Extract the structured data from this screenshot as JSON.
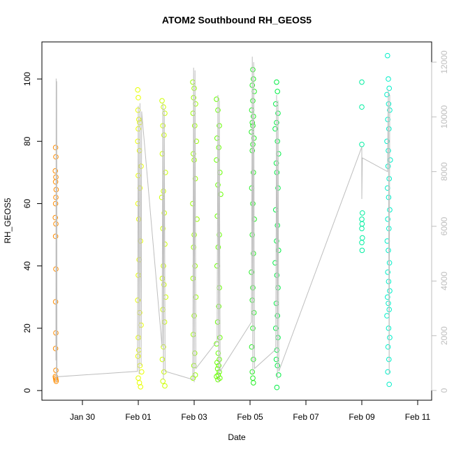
{
  "chart_data": {
    "type": "scatter",
    "title": "ATOM2 Southbound RH_GEOS5",
    "x_label": "Date",
    "y_label": "RH_GEOS5",
    "xlim": [
      28.55,
      42.5
    ],
    "xticks": [
      {
        "value": 30,
        "label": "Jan 30"
      },
      {
        "value": 32,
        "label": "Feb 01"
      },
      {
        "value": 34,
        "label": "Feb 03"
      },
      {
        "value": 36,
        "label": "Feb 05"
      },
      {
        "value": 38,
        "label": "Feb 07"
      },
      {
        "value": 40,
        "label": "Feb 09"
      },
      {
        "value": 42,
        "label": "Feb 11"
      }
    ],
    "ylim": [
      -3.1,
      111.9
    ],
    "yticks": [
      0,
      20,
      40,
      60,
      80,
      100
    ],
    "y2lim": [
      -357,
      12740
    ],
    "y2ticks": [
      0,
      2000,
      4000,
      6000,
      8000,
      10000,
      12000
    ],
    "y2_color": "#bebebe",
    "series": [
      {
        "color": "#ff8c00",
        "x": [
          29.04,
          29.05,
          29.03,
          29.05,
          29.04,
          29.06,
          29.05,
          29.04,
          29.03,
          29.05,
          29.04,
          29.05,
          29.04,
          29.05,
          29.04,
          29.05,
          29.03,
          29.04,
          29.05,
          29.06
        ],
        "values": [
          78,
          75,
          70.5,
          68.5,
          67,
          64.5,
          62,
          60,
          55.5,
          53.5,
          49.5,
          39,
          28.5,
          18.5,
          13.5,
          6.5,
          4.5,
          4,
          3.5,
          3
        ]
      },
      {
        "color": "#e8ff00",
        "x": [
          31.98,
          32.0,
          31.99,
          32.02,
          32.05,
          32.0,
          31.98,
          32.04,
          32.1,
          32.0,
          32.06,
          31.99,
          32.02,
          32.08,
          32.03,
          32.0,
          31.98,
          32.05,
          32.1,
          32.0,
          32.02,
          31.99,
          32.06,
          32.12,
          32.0,
          32.04,
          32.08
        ],
        "values": [
          96.5,
          94,
          90,
          87,
          86,
          84,
          80,
          77,
          72,
          69,
          65,
          60,
          55,
          48,
          42,
          37,
          29,
          25,
          21,
          17,
          13,
          11,
          8,
          6,
          4,
          2.5,
          1.2
        ]
      },
      {
        "color": "#ccff00",
        "x": [
          32.85,
          32.9,
          32.95,
          32.88,
          32.92,
          32.86,
          32.97,
          32.9,
          32.84,
          32.93,
          32.88,
          32.95,
          32.9,
          32.86,
          32.92,
          32.98,
          32.88,
          32.94,
          32.9,
          32.86,
          32.92,
          32.88,
          32.95
        ],
        "values": [
          93,
          91,
          89,
          85,
          82,
          76,
          70,
          64,
          62,
          57,
          52,
          47,
          40,
          36,
          34,
          30,
          26,
          22,
          14,
          10,
          6,
          3,
          1.5
        ]
      },
      {
        "color": "#99ff00",
        "x": [
          33.95,
          34.0,
          33.98,
          34.05,
          33.96,
          34.02,
          34.08,
          33.97,
          34.0,
          34.04,
          33.95,
          34.1,
          34.0,
          33.98,
          34.03,
          33.96,
          34.06,
          34.0,
          33.97,
          34.02,
          33.99,
          34.04,
          33.96
        ],
        "values": [
          99,
          97,
          94,
          92,
          89,
          85,
          80,
          76,
          74,
          68,
          60,
          55,
          50,
          46,
          40,
          36,
          30,
          24,
          18,
          12,
          8,
          5,
          4
        ]
      },
      {
        "color": "#66ff00",
        "x": [
          34.8,
          34.85,
          34.9,
          34.82,
          34.88,
          34.8,
          34.92,
          34.85,
          34.95,
          34.83,
          34.9,
          34.86,
          34.82,
          34.9,
          34.88,
          34.84,
          34.92,
          34.8,
          34.86,
          34.9,
          34.82,
          34.88,
          34.84,
          34.9,
          34.86,
          34.8,
          34.92,
          34.85
        ],
        "values": [
          93.5,
          90,
          85,
          81,
          78,
          74,
          70,
          66,
          63,
          56,
          50,
          46,
          40,
          33,
          27,
          22,
          17,
          15,
          12,
          10,
          9,
          8,
          7,
          6,
          5,
          4.5,
          4,
          3.5
        ]
      },
      {
        "color": "#22ee22",
        "x": [
          36.1,
          36.12,
          36.08,
          36.15,
          36.1,
          36.06,
          36.12,
          36.08,
          36.1,
          36.05,
          36.14,
          36.1,
          36.08,
          36.12,
          36.06,
          36.1,
          36.15,
          36.08,
          36.12,
          36.05,
          36.1,
          36.08,
          36.14,
          36.1,
          36.06,
          36.12,
          36.08,
          36.1,
          36.12
        ],
        "values": [
          103,
          100,
          98,
          96,
          93,
          90,
          88,
          86,
          85,
          83,
          81,
          79,
          77,
          70,
          65,
          60,
          55,
          50,
          44,
          38,
          33,
          29,
          25,
          20,
          14,
          10,
          6,
          4,
          2.5
        ]
      },
      {
        "color": "#00ee44",
        "x": [
          36.95,
          36.98,
          36.92,
          37.0,
          36.95,
          36.9,
          36.98,
          37.02,
          36.94,
          36.96,
          37.0,
          36.92,
          36.98,
          36.95,
          37.02,
          36.9,
          36.96,
          37.0,
          36.94,
          36.98,
          36.92,
          37.0,
          36.96,
          36.94,
          36.98,
          37.02,
          36.96
        ],
        "values": [
          99,
          96,
          92,
          89,
          86,
          84,
          80,
          76,
          73,
          70,
          65,
          58,
          53,
          48,
          45,
          41,
          37,
          33,
          28,
          24,
          20,
          17,
          13,
          10,
          8,
          5,
          1
        ]
      },
      {
        "color": "#00eea0",
        "x": [
          40.0,
          40.0,
          40.0,
          40.02,
          40.0,
          40.01,
          40.0,
          40.02,
          40.0,
          40.01
        ],
        "values": [
          99,
          91,
          79,
          57,
          55,
          53.5,
          52,
          49,
          47.5,
          45
        ]
      },
      {
        "color": "#00eec8",
        "x": [
          40.92,
          40.95,
          40.98,
          40.9,
          40.96,
          41.0,
          40.93,
          40.97,
          40.9,
          40.95,
          41.02,
          40.94,
          40.98,
          40.92,
          40.96,
          41.0,
          40.93,
          40.97,
          40.91,
          40.95,
          40.99,
          40.93,
          40.96,
          41.0,
          40.92,
          40.95,
          40.98,
          40.9,
          40.96,
          41.0,
          40.94,
          40.97,
          40.93,
          40.98
        ],
        "values": [
          107.5,
          100,
          97,
          95,
          92,
          90,
          87,
          84,
          80,
          77,
          74,
          72,
          68,
          65,
          62,
          58,
          55,
          52,
          48,
          45,
          41,
          38,
          35,
          32,
          30,
          28,
          26,
          24,
          20,
          17,
          14,
          10,
          6,
          2
        ]
      },
      {
        "color": "#bebebe",
        "kind": "line",
        "axis": "y2",
        "x": [
          29.05,
          29.06,
          29.07,
          29.08,
          29.09,
          31.97,
          32.0,
          32.03,
          32.06,
          32.1,
          32.12,
          32.85,
          32.88,
          32.9,
          32.93,
          32.96,
          33.95,
          33.98,
          34.0,
          34.03,
          34.06,
          34.82,
          34.85,
          34.88,
          34.9,
          34.93,
          36.05,
          36.08,
          36.1,
          36.13,
          36.16,
          36.92,
          36.95,
          36.98,
          37.0,
          37.03,
          40.0,
          40.0,
          40.02,
          40.92,
          40.95,
          40.98,
          41.0
        ],
        "values": [
          1100,
          11400,
          300,
          11300,
          500,
          700,
          10400,
          600,
          10500,
          900,
          10200,
          1600,
          10500,
          400,
          10300,
          700,
          400,
          11800,
          300,
          11700,
          800,
          1800,
          10800,
          300,
          10600,
          700,
          2500,
          12200,
          600,
          12000,
          800,
          1500,
          10800,
          400,
          10600,
          700,
          8900,
          7000,
          8500,
          8000,
          11000,
          600,
          10800
        ]
      }
    ]
  }
}
